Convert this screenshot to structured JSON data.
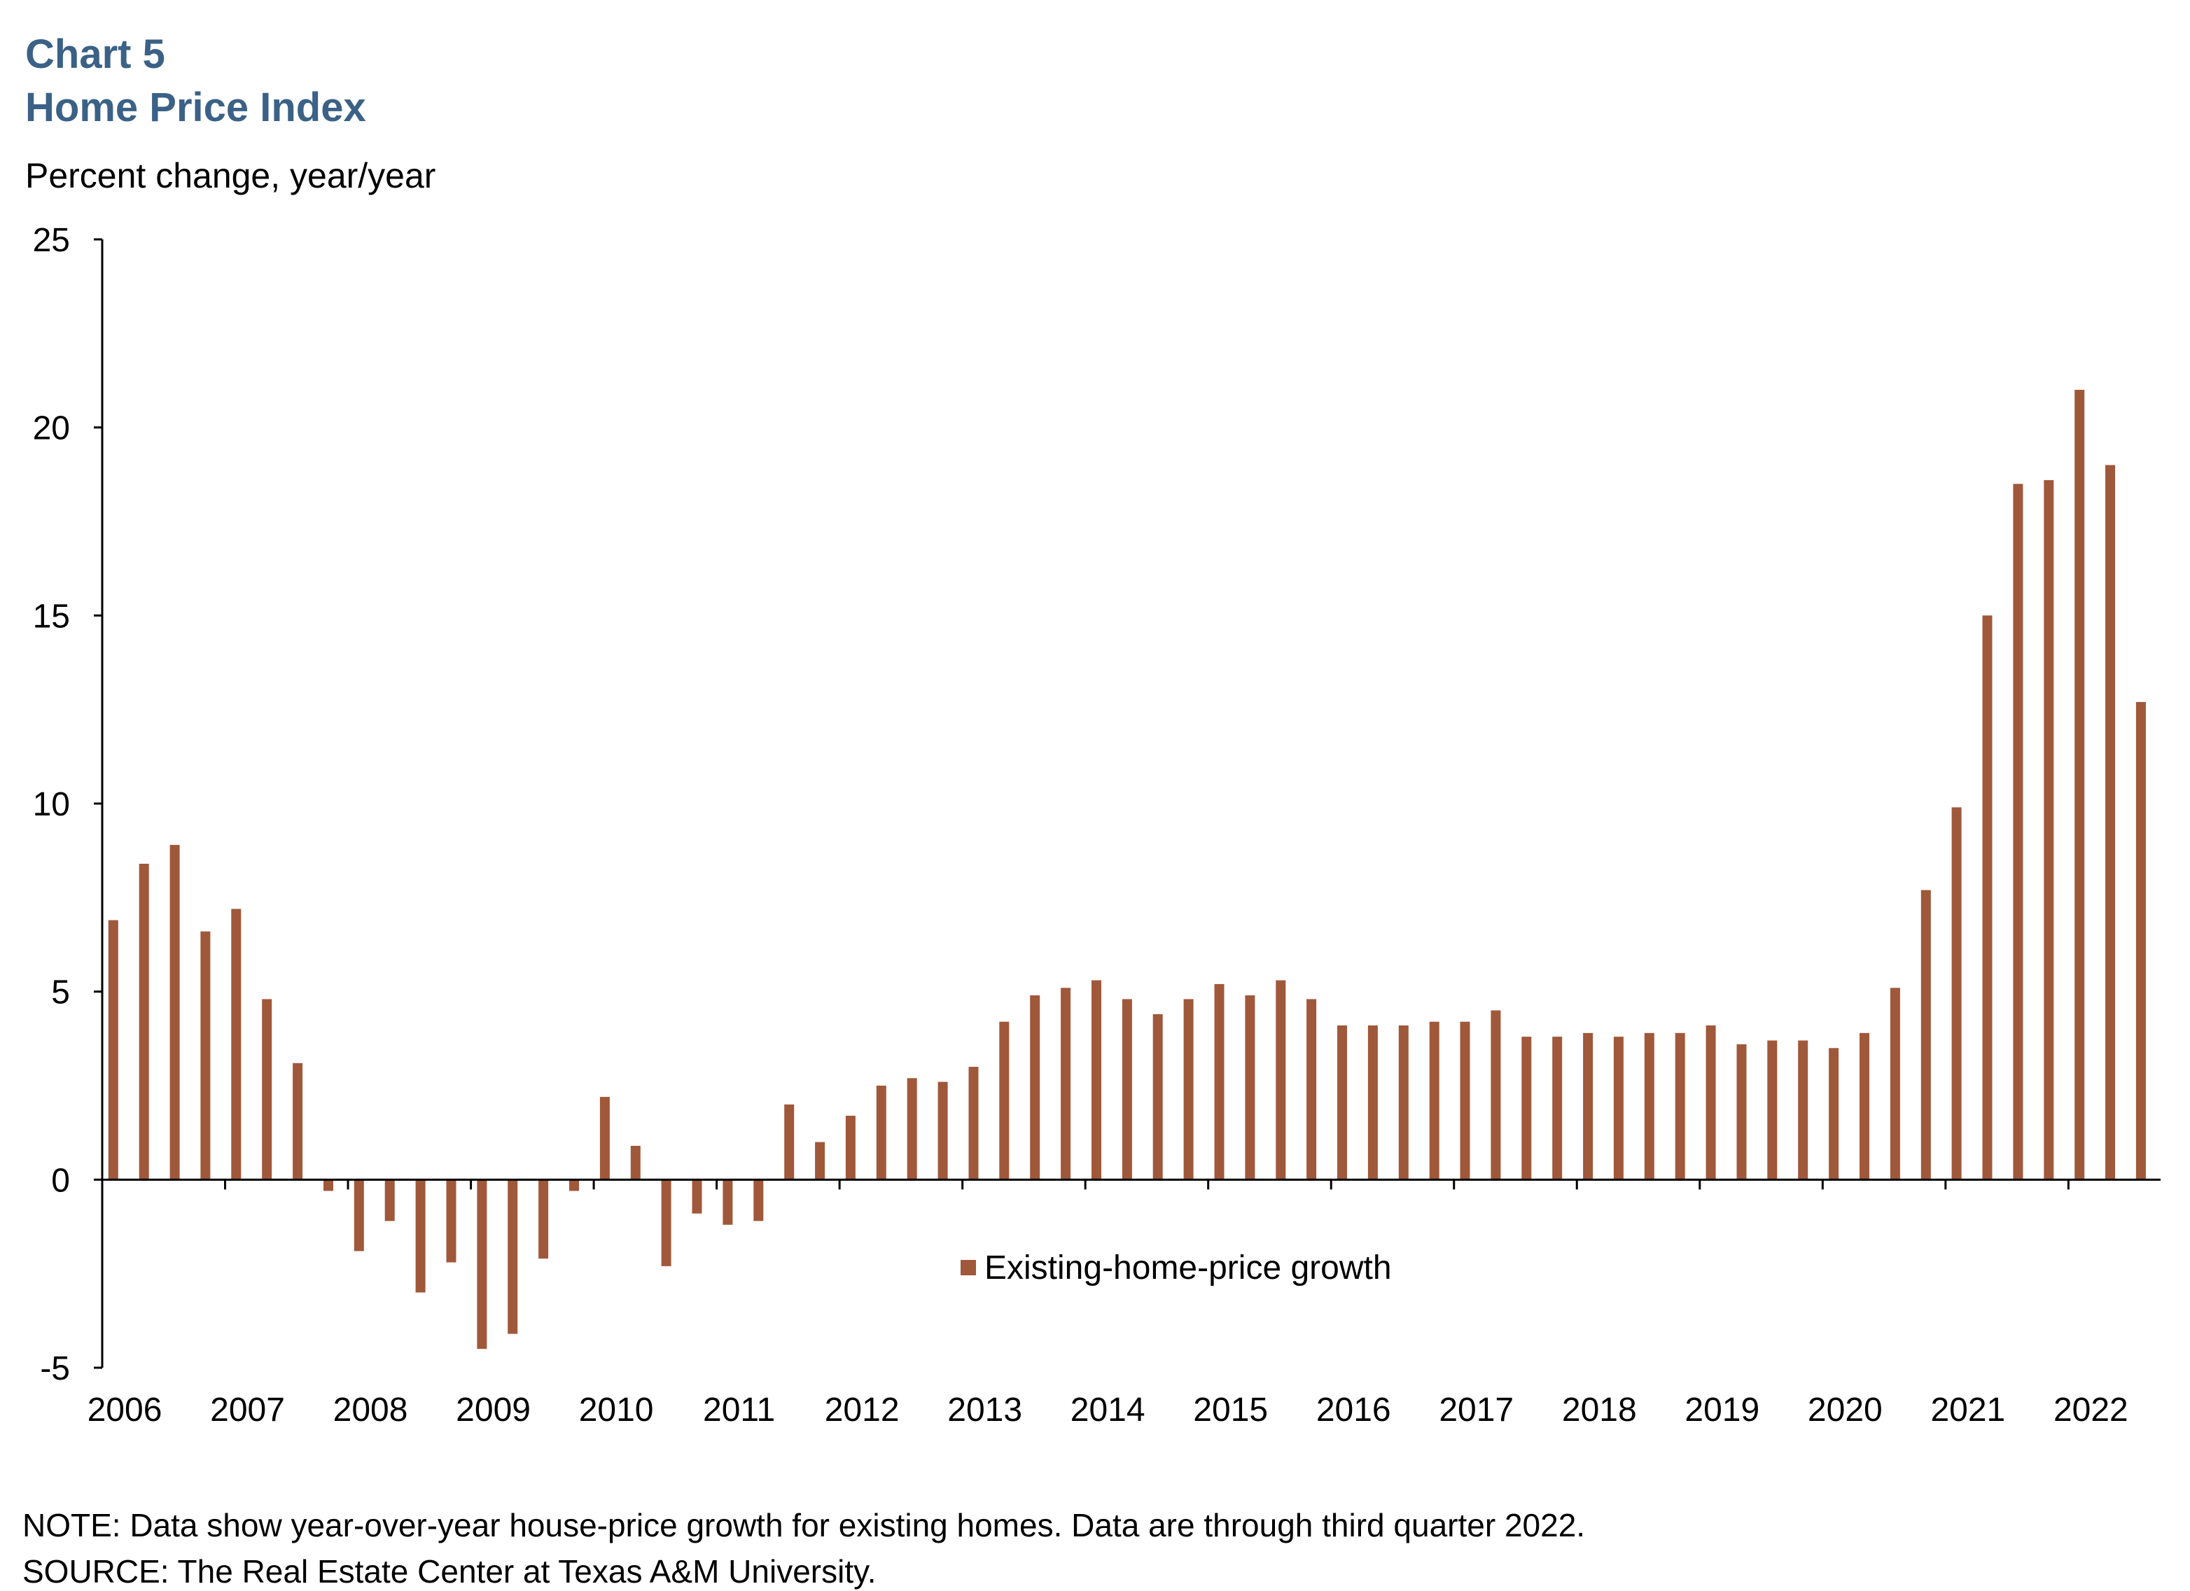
{
  "header": {
    "chart_number": "Chart 5",
    "chart_title": "Home Price Index",
    "units_label": "Percent change, year/year"
  },
  "footer": {
    "note": "NOTE: Data show year-over-year house-price growth for existing homes. Data are through third quarter 2022.",
    "source": "SOURCE: The Real Estate Center at Texas A&M University."
  },
  "chart_data": {
    "type": "bar",
    "title": "Home Price Index",
    "ylabel": "Percent change, year/year",
    "xlabel": "",
    "ylim": [
      -5,
      25
    ],
    "yticks": [
      -5,
      0,
      5,
      10,
      15,
      20,
      25
    ],
    "xlim": [
      2006.0,
      2022.75
    ],
    "year_labels": [
      "2006",
      "2007",
      "2008",
      "2009",
      "2010",
      "2011",
      "2012",
      "2013",
      "2014",
      "2015",
      "2016",
      "2017",
      "2018",
      "2019",
      "2020",
      "2021",
      "2022"
    ],
    "grid": false,
    "bar_color": "#a0583a",
    "axis_color": "#000000",
    "legend": {
      "label": "Existing-home-price growth",
      "position": "bottom-center"
    },
    "series": [
      {
        "name": "Existing-home-price growth",
        "x": [
          2006.0,
          2006.25,
          2006.5,
          2006.75,
          2007.0,
          2007.25,
          2007.5,
          2007.75,
          2008.0,
          2008.25,
          2008.5,
          2008.75,
          2009.0,
          2009.25,
          2009.5,
          2009.75,
          2010.0,
          2010.25,
          2010.5,
          2010.75,
          2011.0,
          2011.25,
          2011.5,
          2011.75,
          2012.0,
          2012.25,
          2012.5,
          2012.75,
          2013.0,
          2013.25,
          2013.5,
          2013.75,
          2014.0,
          2014.25,
          2014.5,
          2014.75,
          2015.0,
          2015.25,
          2015.5,
          2015.75,
          2016.0,
          2016.25,
          2016.5,
          2016.75,
          2017.0,
          2017.25,
          2017.5,
          2017.75,
          2018.0,
          2018.25,
          2018.5,
          2018.75,
          2019.0,
          2019.25,
          2019.5,
          2019.75,
          2020.0,
          2020.25,
          2020.5,
          2020.75,
          2021.0,
          2021.25,
          2021.5,
          2021.75,
          2022.0,
          2022.25,
          2022.5
        ],
        "values": [
          6.9,
          8.4,
          8.9,
          6.6,
          7.2,
          4.8,
          3.1,
          -0.3,
          -1.9,
          -1.1,
          -3.0,
          -2.2,
          -4.5,
          -4.1,
          -2.1,
          -0.3,
          2.2,
          0.9,
          -2.3,
          -0.9,
          -1.2,
          -1.1,
          2.0,
          1.0,
          1.7,
          2.5,
          2.7,
          2.6,
          3.0,
          4.2,
          4.9,
          5.1,
          5.3,
          4.8,
          4.4,
          4.8,
          5.2,
          4.9,
          5.3,
          4.8,
          4.1,
          4.1,
          4.1,
          4.2,
          4.2,
          4.5,
          3.8,
          3.8,
          3.9,
          3.8,
          3.9,
          3.9,
          4.1,
          3.6,
          3.7,
          3.7,
          3.5,
          3.9,
          5.1,
          7.7,
          9.9,
          15.0,
          18.5,
          18.6,
          21.0,
          19.0,
          12.7
        ]
      }
    ]
  }
}
